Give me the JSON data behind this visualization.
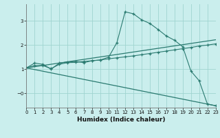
{
  "xlabel": "Humidex (Indice chaleur)",
  "xlim": [
    0,
    23
  ],
  "ylim": [
    -0.6,
    3.7
  ],
  "xticks": [
    0,
    1,
    2,
    3,
    4,
    5,
    6,
    7,
    8,
    9,
    10,
    11,
    12,
    13,
    14,
    15,
    16,
    17,
    18,
    19,
    20,
    21,
    22,
    23
  ],
  "yticks": [
    0,
    1,
    2,
    3
  ],
  "ytick_labels": [
    "−0",
    "1",
    "2",
    "3"
  ],
  "background_color": "#caeeed",
  "grid_color": "#9fd4d0",
  "line_color": "#2a7a70",
  "curve1_x": [
    0,
    1,
    2,
    3,
    4,
    5,
    6,
    7,
    8,
    9,
    10,
    11,
    12,
    13,
    14,
    15,
    16,
    17,
    18,
    19,
    20,
    21,
    22,
    23
  ],
  "curve1_y": [
    1.05,
    1.25,
    1.2,
    1.0,
    1.25,
    1.3,
    1.32,
    1.27,
    1.35,
    1.38,
    1.5,
    2.1,
    3.38,
    3.3,
    3.05,
    2.9,
    2.65,
    2.38,
    2.2,
    1.93,
    0.92,
    0.52,
    -0.45,
    -0.52
  ],
  "curve2_x": [
    0,
    1,
    2,
    3,
    4,
    5,
    6,
    7,
    8,
    9,
    10,
    11,
    12,
    13,
    14,
    15,
    16,
    17,
    18,
    19,
    20,
    21,
    22,
    23
  ],
  "curve2_y": [
    1.05,
    1.15,
    1.15,
    1.02,
    1.2,
    1.27,
    1.28,
    1.32,
    1.35,
    1.38,
    1.43,
    1.47,
    1.51,
    1.55,
    1.6,
    1.65,
    1.7,
    1.75,
    1.8,
    1.85,
    1.9,
    1.96,
    2.0,
    2.05
  ],
  "line3_y": [
    1.05,
    2.22
  ],
  "line4_y": [
    1.05,
    -0.52
  ]
}
